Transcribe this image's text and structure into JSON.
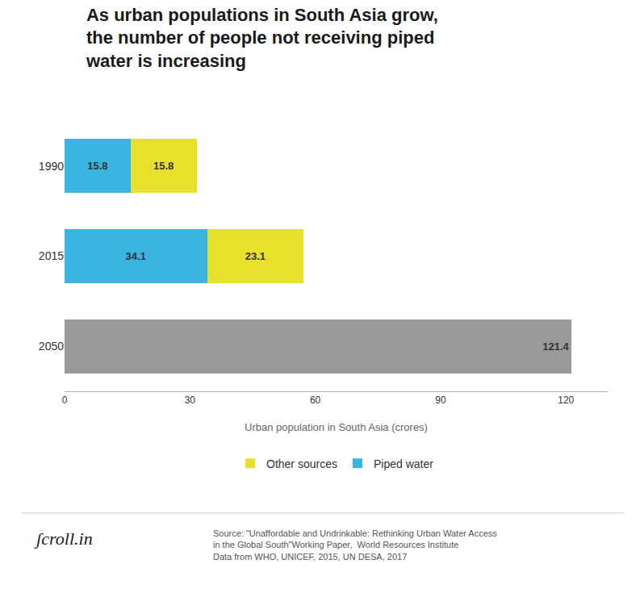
{
  "chart_data": {
    "type": "bar",
    "orientation": "horizontal",
    "stacked": true,
    "title": "As urban populations in South Asia grow,\nthe number of people not receiving piped\nwater is increasing",
    "categories": [
      "2050",
      "2015",
      "1990"
    ],
    "series": [
      {
        "name": "Piped water",
        "color": "#3ab4e0",
        "values": [
          null,
          34.1,
          15.8
        ]
      },
      {
        "name": "Other sources",
        "color": "#e8e02a",
        "values": [
          null,
          23.1,
          15.8
        ]
      },
      {
        "color": "#999999",
        "values": [
          121.4,
          null,
          null
        ]
      }
    ],
    "x_label": "Urban population in South Asia (crores)",
    "xlim": [
      0,
      130
    ],
    "xticks": [
      0,
      30,
      60,
      90,
      120
    ],
    "grid": false,
    "legend": "bottom",
    "data_labels": true,
    "annotations": [
      "ʃcroll.in",
      "Source: \"Unaffordable and Undrinkable: Rethinking Urban Water Access\nin the Global South\"Working Paper,  World Resources Institute\nData from WHO, UNICEF, 2015, UN DESA, 2017"
    ]
  }
}
